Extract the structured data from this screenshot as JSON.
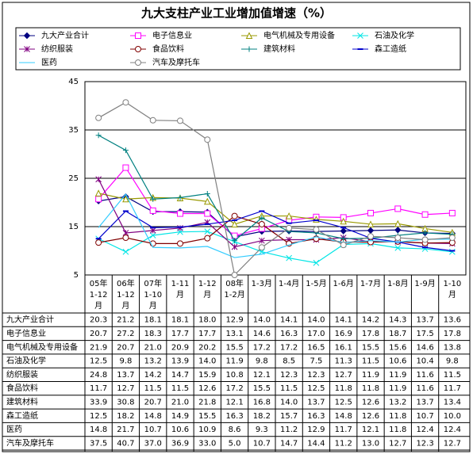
{
  "chart_data": {
    "type": "line",
    "title": "九大支柱产业工业增加值增速（%）",
    "categories": [
      "05年\n1-12\n月",
      "06年\n1-12\n月",
      "07年\n1-10\n月",
      "1-11\n月",
      "1-12\n月",
      "08年\n1-2月",
      "1-3月",
      "1-4月",
      "1-5月",
      "1-6月",
      "1-7月",
      "1-8月",
      "1-9月",
      "1-10\n月"
    ],
    "ylim": [
      5,
      45
    ],
    "yticks": [
      5,
      15,
      25,
      35,
      45
    ],
    "grid": true,
    "series": [
      {
        "name": "九大产业合计",
        "color": "#000080",
        "marker": "diamond",
        "values": [
          20.3,
          21.2,
          18.1,
          18.1,
          18.0,
          12.9,
          14.0,
          14.1,
          14.0,
          14.1,
          14.2,
          14.3,
          13.7,
          13.6
        ],
        "value_labels": [
          "20.3",
          "21.2",
          "18.1",
          "18.1",
          "18.0",
          "12.9",
          "14.0",
          "14.1",
          "14.0",
          "14.1",
          "14.2",
          "14.3",
          "13.7",
          "13.6"
        ]
      },
      {
        "name": "电子信息业",
        "color": "#ff00ff",
        "marker": "square",
        "values": [
          20.7,
          27.2,
          18.3,
          17.7,
          17.7,
          13.1,
          14.6,
          16.3,
          17.0,
          16.9,
          17.8,
          18.7,
          17.5,
          17.8
        ],
        "value_labels": [
          "20.7",
          "27.2",
          "18.3",
          "17.7",
          "17.7",
          "13.1",
          "14.6",
          "16.3",
          "17.0",
          "16.9",
          "17.8",
          "18.7",
          "17.5",
          "17.8"
        ]
      },
      {
        "name": "电气机械及专用设备",
        "color": "#999900",
        "marker": "triangle",
        "values": [
          21.9,
          20.7,
          21.0,
          20.9,
          20.2,
          15.5,
          17.2,
          17.2,
          16.5,
          16.1,
          15.5,
          15.6,
          14.6,
          13.8
        ],
        "value_labels": [
          "21.9",
          "20.7",
          "21.0",
          "20.9",
          "20.2",
          "15.5",
          "17.2",
          "17.2",
          "16.5",
          "16.1",
          "15.5",
          "15.6",
          "14.6",
          "13.8"
        ]
      },
      {
        "name": "石油及化学",
        "color": "#00e5e5",
        "marker": "x",
        "values": [
          12.5,
          9.8,
          13.2,
          13.9,
          14.0,
          11.9,
          9.8,
          8.5,
          7.5,
          11.3,
          11.5,
          10.6,
          10.4,
          9.8
        ],
        "value_labels": [
          "12.5",
          "9.8",
          "13.2",
          "13.9",
          "14.0",
          "11.9",
          "9.8",
          "8.5",
          "7.5",
          "11.3",
          "11.5",
          "10.6",
          "10.4",
          "9.8"
        ]
      },
      {
        "name": "纺织服装",
        "color": "#800080",
        "marker": "star",
        "values": [
          24.8,
          13.7,
          14.2,
          14.7,
          15.9,
          10.8,
          12.1,
          12.3,
          12.3,
          12.7,
          11.9,
          11.9,
          11.6,
          11.5
        ],
        "value_labels": [
          "24.8",
          "13.7",
          "14.2",
          "14.7",
          "15.9",
          "10.8",
          "12.1",
          "12.3",
          "12.3",
          "12.7",
          "11.9",
          "11.9",
          "11.6",
          "11.5"
        ]
      },
      {
        "name": "食品饮料",
        "color": "#800000",
        "marker": "circle",
        "values": [
          11.7,
          12.7,
          11.5,
          11.5,
          12.6,
          17.2,
          15.5,
          11.5,
          12.5,
          11.8,
          11.8,
          11.9,
          11.6,
          11.7
        ],
        "value_labels": [
          "11.7",
          "12.7",
          "11.5",
          "11.5",
          "12.6",
          "17.2",
          "15.5",
          "11.5",
          "12.5",
          "11.8",
          "11.8",
          "11.9",
          "11.6",
          "11.7"
        ]
      },
      {
        "name": "建筑材料",
        "color": "#008080",
        "marker": "plus",
        "values": [
          33.9,
          30.8,
          20.7,
          21.0,
          21.8,
          12.1,
          16.8,
          14.0,
          13.7,
          12.5,
          12.6,
          13.2,
          13.7,
          13.4
        ],
        "value_labels": [
          "33.9",
          "30.8",
          "20.7",
          "21.0",
          "21.8",
          "12.1",
          "16.8",
          "14.0",
          "13.7",
          "12.5",
          "12.6",
          "13.2",
          "13.7",
          "13.4"
        ]
      },
      {
        "name": "森工造纸",
        "color": "#0000cc",
        "marker": "dash",
        "values": [
          12.5,
          18.2,
          14.8,
          14.9,
          15.5,
          16.3,
          18.2,
          15.7,
          16.3,
          14.8,
          12.6,
          11.8,
          10.7,
          10.0
        ],
        "value_labels": [
          "12.5",
          "18.2",
          "14.8",
          "14.9",
          "15.5",
          "16.3",
          "18.2",
          "15.7",
          "16.3",
          "14.8",
          "12.6",
          "11.8",
          "10.7",
          "10.0"
        ]
      },
      {
        "name": "医药",
        "color": "#33ccff",
        "marker": "none",
        "values": [
          14.8,
          21.7,
          10.7,
          10.6,
          10.9,
          8.6,
          9.3,
          11.2,
          12.9,
          11.7,
          12.1,
          11.8,
          12.4,
          12.4
        ],
        "value_labels": [
          "14.8",
          "21.7",
          "10.7",
          "10.6",
          "10.9",
          "8.6",
          "9.3",
          "11.2",
          "12.9",
          "11.7",
          "12.1",
          "11.8",
          "12.4",
          "12.4"
        ]
      },
      {
        "name": "汽车及摩托车",
        "color": "#808080",
        "marker": "circle",
        "values": [
          37.5,
          40.7,
          37.0,
          36.9,
          33.0,
          5.0,
          10.7,
          14.7,
          14.4,
          11.2,
          13.0,
          12.7,
          12.3,
          12.7
        ],
        "value_labels": [
          "37.5",
          "40.7",
          "37.0",
          "36.9",
          "33.0",
          "5.0",
          "10.7",
          "14.7",
          "14.4",
          "11.2",
          "13.0",
          "12.7",
          "12.3",
          "12.7"
        ]
      }
    ]
  }
}
